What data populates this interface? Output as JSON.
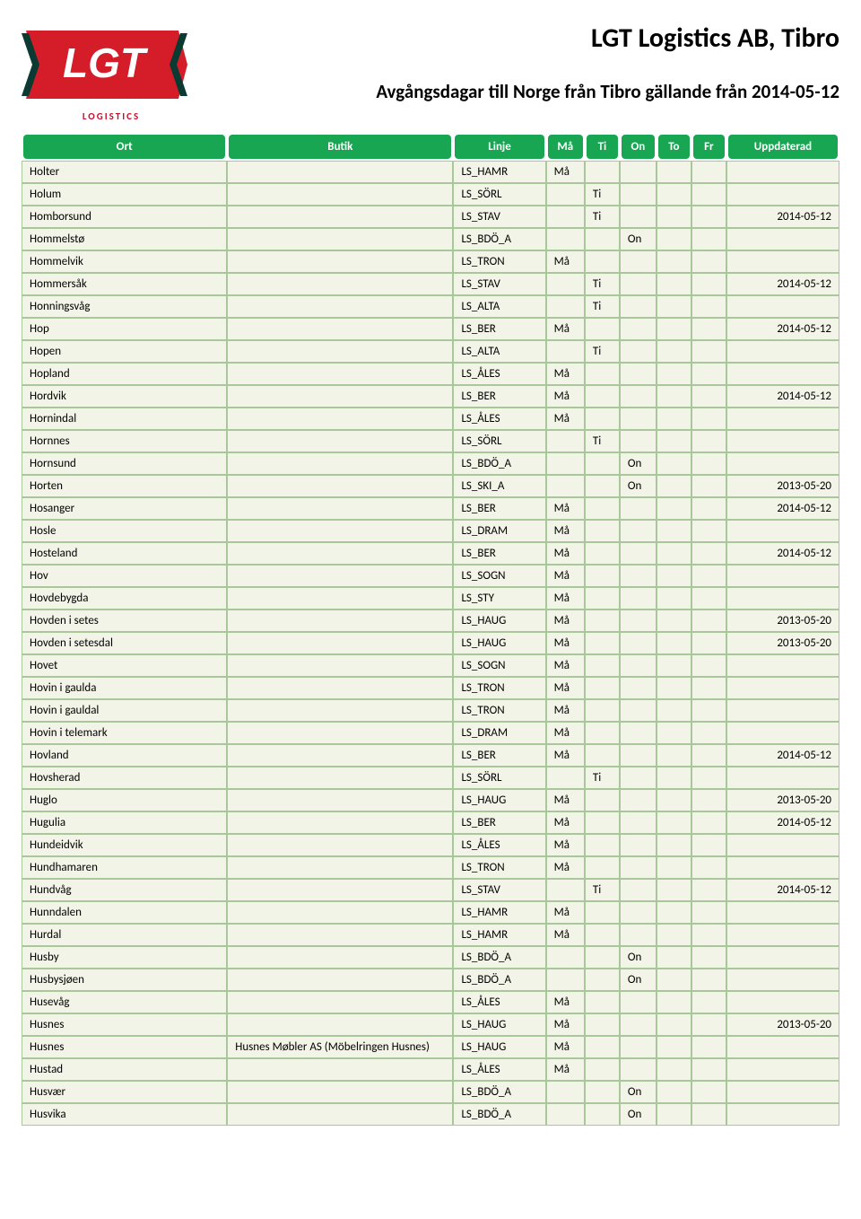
{
  "header": {
    "company": "LGT Logistics AB, Tibro",
    "subtitle": "Avgångsdagar till Norge från Tibro gällande från 2014-05-12",
    "logo_text": "LGT",
    "logo_sub": "LOGISTICS"
  },
  "colors": {
    "header_bg": "#18a653",
    "header_fg": "#ffffff",
    "row_bg": "#f3f4e8",
    "row_border": "#a8c89a",
    "logo_red": "#d51c29",
    "logo_dark": "#0a3a32"
  },
  "columns": [
    {
      "key": "ort",
      "label": "Ort"
    },
    {
      "key": "butik",
      "label": "Butik"
    },
    {
      "key": "linje",
      "label": "Linje"
    },
    {
      "key": "ma",
      "label": "Må"
    },
    {
      "key": "ti",
      "label": "Ti"
    },
    {
      "key": "on",
      "label": "On"
    },
    {
      "key": "to",
      "label": "To"
    },
    {
      "key": "fr",
      "label": "Fr"
    },
    {
      "key": "upd",
      "label": "Uppdaterad"
    }
  ],
  "rows": [
    {
      "ort": "Holter",
      "butik": "",
      "linje": "LS_HAMR",
      "ma": "Må",
      "ti": "",
      "on": "",
      "to": "",
      "fr": "",
      "upd": ""
    },
    {
      "ort": "Holum",
      "butik": "",
      "linje": "LS_SÖRL",
      "ma": "",
      "ti": "Ti",
      "on": "",
      "to": "",
      "fr": "",
      "upd": ""
    },
    {
      "ort": "Homborsund",
      "butik": "",
      "linje": "LS_STAV",
      "ma": "",
      "ti": "Ti",
      "on": "",
      "to": "",
      "fr": "",
      "upd": "2014-05-12"
    },
    {
      "ort": "Hommelstø",
      "butik": "",
      "linje": "LS_BDÖ_A",
      "ma": "",
      "ti": "",
      "on": "On",
      "to": "",
      "fr": "",
      "upd": ""
    },
    {
      "ort": "Hommelvik",
      "butik": "",
      "linje": "LS_TRON",
      "ma": "Må",
      "ti": "",
      "on": "",
      "to": "",
      "fr": "",
      "upd": ""
    },
    {
      "ort": "Hommersåk",
      "butik": "",
      "linje": "LS_STAV",
      "ma": "",
      "ti": "Ti",
      "on": "",
      "to": "",
      "fr": "",
      "upd": "2014-05-12"
    },
    {
      "ort": "Honningsvåg",
      "butik": "",
      "linje": "LS_ALTA",
      "ma": "",
      "ti": "Ti",
      "on": "",
      "to": "",
      "fr": "",
      "upd": ""
    },
    {
      "ort": "Hop",
      "butik": "",
      "linje": "LS_BER",
      "ma": "Må",
      "ti": "",
      "on": "",
      "to": "",
      "fr": "",
      "upd": "2014-05-12"
    },
    {
      "ort": "Hopen",
      "butik": "",
      "linje": "LS_ALTA",
      "ma": "",
      "ti": "Ti",
      "on": "",
      "to": "",
      "fr": "",
      "upd": ""
    },
    {
      "ort": "Hopland",
      "butik": "",
      "linje": "LS_ÅLES",
      "ma": "Må",
      "ti": "",
      "on": "",
      "to": "",
      "fr": "",
      "upd": ""
    },
    {
      "ort": "Hordvik",
      "butik": "",
      "linje": "LS_BER",
      "ma": "Må",
      "ti": "",
      "on": "",
      "to": "",
      "fr": "",
      "upd": "2014-05-12"
    },
    {
      "ort": "Hornindal",
      "butik": "",
      "linje": "LS_ÅLES",
      "ma": "Må",
      "ti": "",
      "on": "",
      "to": "",
      "fr": "",
      "upd": ""
    },
    {
      "ort": "Hornnes",
      "butik": "",
      "linje": "LS_SÖRL",
      "ma": "",
      "ti": "Ti",
      "on": "",
      "to": "",
      "fr": "",
      "upd": ""
    },
    {
      "ort": "Hornsund",
      "butik": "",
      "linje": "LS_BDÖ_A",
      "ma": "",
      "ti": "",
      "on": "On",
      "to": "",
      "fr": "",
      "upd": ""
    },
    {
      "ort": "Horten",
      "butik": "",
      "linje": "LS_SKI_A",
      "ma": "",
      "ti": "",
      "on": "On",
      "to": "",
      "fr": "",
      "upd": "2013-05-20"
    },
    {
      "ort": "Hosanger",
      "butik": "",
      "linje": "LS_BER",
      "ma": "Må",
      "ti": "",
      "on": "",
      "to": "",
      "fr": "",
      "upd": "2014-05-12"
    },
    {
      "ort": "Hosle",
      "butik": "",
      "linje": "LS_DRAM",
      "ma": "Må",
      "ti": "",
      "on": "",
      "to": "",
      "fr": "",
      "upd": ""
    },
    {
      "ort": "Hosteland",
      "butik": "",
      "linje": "LS_BER",
      "ma": "Må",
      "ti": "",
      "on": "",
      "to": "",
      "fr": "",
      "upd": "2014-05-12"
    },
    {
      "ort": "Hov",
      "butik": "",
      "linje": "LS_SOGN",
      "ma": "Må",
      "ti": "",
      "on": "",
      "to": "",
      "fr": "",
      "upd": ""
    },
    {
      "ort": "Hovdebygda",
      "butik": "",
      "linje": "LS_STY",
      "ma": "Må",
      "ti": "",
      "on": "",
      "to": "",
      "fr": "",
      "upd": ""
    },
    {
      "ort": "Hovden i setes",
      "butik": "",
      "linje": "LS_HAUG",
      "ma": "Må",
      "ti": "",
      "on": "",
      "to": "",
      "fr": "",
      "upd": "2013-05-20"
    },
    {
      "ort": "Hovden i setesdal",
      "butik": "",
      "linje": "LS_HAUG",
      "ma": "Må",
      "ti": "",
      "on": "",
      "to": "",
      "fr": "",
      "upd": "2013-05-20"
    },
    {
      "ort": "Hovet",
      "butik": "",
      "linje": "LS_SOGN",
      "ma": "Må",
      "ti": "",
      "on": "",
      "to": "",
      "fr": "",
      "upd": ""
    },
    {
      "ort": "Hovin i gaulda",
      "butik": "",
      "linje": "LS_TRON",
      "ma": "Må",
      "ti": "",
      "on": "",
      "to": "",
      "fr": "",
      "upd": ""
    },
    {
      "ort": "Hovin i gauldal",
      "butik": "",
      "linje": "LS_TRON",
      "ma": "Må",
      "ti": "",
      "on": "",
      "to": "",
      "fr": "",
      "upd": ""
    },
    {
      "ort": "Hovin i telemark",
      "butik": "",
      "linje": "LS_DRAM",
      "ma": "Må",
      "ti": "",
      "on": "",
      "to": "",
      "fr": "",
      "upd": ""
    },
    {
      "ort": "Hovland",
      "butik": "",
      "linje": "LS_BER",
      "ma": "Må",
      "ti": "",
      "on": "",
      "to": "",
      "fr": "",
      "upd": "2014-05-12"
    },
    {
      "ort": "Hovsherad",
      "butik": "",
      "linje": "LS_SÖRL",
      "ma": "",
      "ti": "Ti",
      "on": "",
      "to": "",
      "fr": "",
      "upd": ""
    },
    {
      "ort": "Huglo",
      "butik": "",
      "linje": "LS_HAUG",
      "ma": "Må",
      "ti": "",
      "on": "",
      "to": "",
      "fr": "",
      "upd": "2013-05-20"
    },
    {
      "ort": "Hugulia",
      "butik": "",
      "linje": "LS_BER",
      "ma": "Må",
      "ti": "",
      "on": "",
      "to": "",
      "fr": "",
      "upd": "2014-05-12"
    },
    {
      "ort": "Hundeidvik",
      "butik": "",
      "linje": "LS_ÅLES",
      "ma": "Må",
      "ti": "",
      "on": "",
      "to": "",
      "fr": "",
      "upd": ""
    },
    {
      "ort": "Hundhamaren",
      "butik": "",
      "linje": "LS_TRON",
      "ma": "Må",
      "ti": "",
      "on": "",
      "to": "",
      "fr": "",
      "upd": ""
    },
    {
      "ort": "Hundvåg",
      "butik": "",
      "linje": "LS_STAV",
      "ma": "",
      "ti": "Ti",
      "on": "",
      "to": "",
      "fr": "",
      "upd": "2014-05-12"
    },
    {
      "ort": "Hunndalen",
      "butik": "",
      "linje": "LS_HAMR",
      "ma": "Må",
      "ti": "",
      "on": "",
      "to": "",
      "fr": "",
      "upd": ""
    },
    {
      "ort": "Hurdal",
      "butik": "",
      "linje": "LS_HAMR",
      "ma": "Må",
      "ti": "",
      "on": "",
      "to": "",
      "fr": "",
      "upd": ""
    },
    {
      "ort": "Husby",
      "butik": "",
      "linje": "LS_BDÖ_A",
      "ma": "",
      "ti": "",
      "on": "On",
      "to": "",
      "fr": "",
      "upd": ""
    },
    {
      "ort": "Husbysjøen",
      "butik": "",
      "linje": "LS_BDÖ_A",
      "ma": "",
      "ti": "",
      "on": "On",
      "to": "",
      "fr": "",
      "upd": ""
    },
    {
      "ort": "Husevåg",
      "butik": "",
      "linje": "LS_ÅLES",
      "ma": "Må",
      "ti": "",
      "on": "",
      "to": "",
      "fr": "",
      "upd": ""
    },
    {
      "ort": "Husnes",
      "butik": "",
      "linje": "LS_HAUG",
      "ma": "Må",
      "ti": "",
      "on": "",
      "to": "",
      "fr": "",
      "upd": "2013-05-20"
    },
    {
      "ort": "Husnes",
      "butik": "Husnes Møbler AS (Möbelringen Husnes)",
      "linje": "LS_HAUG",
      "ma": "Må",
      "ti": "",
      "on": "",
      "to": "",
      "fr": "",
      "upd": ""
    },
    {
      "ort": "Hustad",
      "butik": "",
      "linje": "LS_ÅLES",
      "ma": "Må",
      "ti": "",
      "on": "",
      "to": "",
      "fr": "",
      "upd": ""
    },
    {
      "ort": "Husvær",
      "butik": "",
      "linje": "LS_BDÖ_A",
      "ma": "",
      "ti": "",
      "on": "On",
      "to": "",
      "fr": "",
      "upd": ""
    },
    {
      "ort": "Husvika",
      "butik": "",
      "linje": "LS_BDÖ_A",
      "ma": "",
      "ti": "",
      "on": "On",
      "to": "",
      "fr": "",
      "upd": ""
    }
  ]
}
